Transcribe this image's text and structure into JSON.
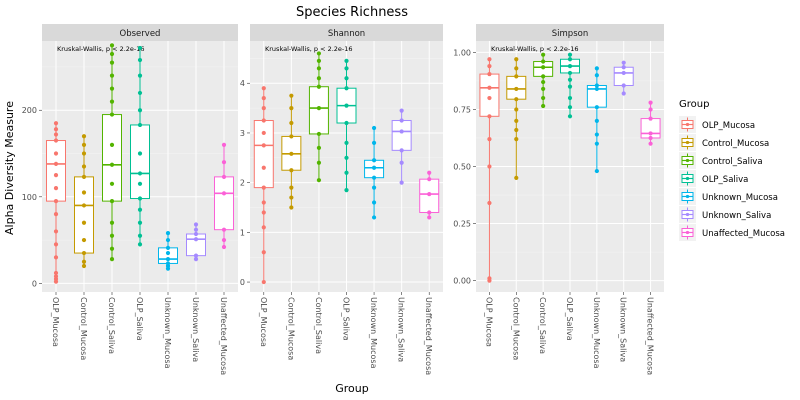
{
  "chart_data": {
    "type": "box",
    "title": "Species Richness",
    "xlabel": "Group",
    "ylabel": "Alpha Diversity Measure",
    "categories": [
      "OLP_Mucosa",
      "Control_Mucosa",
      "Control_Saliva",
      "OLP_Saliva",
      "Unknown_Mucosa",
      "Unknown_Saliva",
      "Unaffected_Mucosa"
    ],
    "colors": [
      "#F8766D",
      "#C49A00",
      "#53B400",
      "#00C094",
      "#00B6EB",
      "#A58AFF",
      "#FB61D7"
    ],
    "legend": {
      "title": "Group",
      "position": "right",
      "entries": [
        "OLP_Mucosa",
        "Control_Mucosa",
        "Control_Saliva",
        "OLP_Saliva",
        "Unknown_Mucosa",
        "Unknown_Saliva",
        "Unaffected_Mucosa"
      ]
    },
    "grid": true,
    "panels": [
      {
        "name": "Observed",
        "annotation": "Kruskal-Wallis, p < 2.2e-16",
        "ylim": [
          -10,
          280
        ],
        "ticks": [
          0,
          100,
          200
        ],
        "tick_labels": [
          "0",
          "100",
          "200"
        ],
        "boxes": [
          {
            "q1": 95,
            "median": 138,
            "q3": 165,
            "whisker_low": 2,
            "whisker_high": 185,
            "points": [
              2,
              5,
              8,
              12,
              30,
              45,
              60,
              80,
              95,
              110,
              125,
              138,
              150,
              165,
              172,
              178,
              185
            ]
          },
          {
            "q1": 35,
            "median": 90,
            "q3": 123,
            "whisker_low": 20,
            "whisker_high": 170,
            "points": [
              20,
              25,
              35,
              50,
              70,
              90,
              105,
              123,
              135,
              150,
              160,
              170
            ]
          },
          {
            "q1": 95,
            "median": 137,
            "q3": 195,
            "whisker_low": 28,
            "whisker_high": 275,
            "points": [
              28,
              40,
              55,
              70,
              95,
              115,
              137,
              160,
              195,
              210,
              225,
              240,
              255,
              265,
              275
            ]
          },
          {
            "q1": 98,
            "median": 127,
            "q3": 183,
            "whisker_low": 45,
            "whisker_high": 272,
            "points": [
              45,
              55,
              70,
              85,
              98,
              115,
              127,
              150,
              183,
              200,
              220,
              240,
              258,
              272
            ]
          },
          {
            "q1": 23,
            "median": 28,
            "q3": 41,
            "whisker_low": 17,
            "whisker_high": 58,
            "points": [
              17,
              20,
              23,
              28,
              35,
              41,
              50,
              58
            ]
          },
          {
            "q1": 32,
            "median": 51,
            "q3": 57,
            "whisker_low": 28,
            "whisker_high": 68,
            "points": [
              28,
              32,
              51,
              57,
              62,
              68
            ]
          },
          {
            "q1": 62,
            "median": 104,
            "q3": 123,
            "whisker_low": 42,
            "whisker_high": 160,
            "points": [
              42,
              50,
              62,
              104,
              123,
              140,
              160
            ]
          }
        ]
      },
      {
        "name": "Shannon",
        "annotation": "Kruskal-Wallis, p < 2.2e-16",
        "ylim": [
          -0.2,
          4.85
        ],
        "ticks": [
          0,
          1,
          2,
          3,
          4
        ],
        "tick_labels": [
          "0",
          "1",
          "2",
          "3",
          "4"
        ],
        "boxes": [
          {
            "q1": 1.9,
            "median": 2.75,
            "q3": 3.25,
            "whisker_low": 0.0,
            "whisker_high": 3.9,
            "points": [
              0.0,
              0.6,
              1.1,
              1.4,
              1.6,
              1.9,
              2.3,
              2.75,
              3.0,
              3.25,
              3.5,
              3.7,
              3.9
            ]
          },
          {
            "q1": 2.25,
            "median": 2.58,
            "q3": 2.93,
            "whisker_low": 1.5,
            "whisker_high": 3.75,
            "points": [
              1.5,
              1.7,
              1.9,
              2.25,
              2.58,
              2.93,
              3.2,
              3.5,
              3.75
            ]
          },
          {
            "q1": 2.98,
            "median": 3.5,
            "q3": 3.93,
            "whisker_low": 2.05,
            "whisker_high": 4.6,
            "points": [
              2.05,
              2.4,
              2.7,
              2.98,
              3.5,
              3.93,
              4.1,
              4.3,
              4.45,
              4.6
            ]
          },
          {
            "q1": 3.2,
            "median": 3.55,
            "q3": 3.9,
            "whisker_low": 1.85,
            "whisker_high": 4.45,
            "points": [
              1.85,
              2.2,
              2.5,
              2.8,
              3.2,
              3.55,
              3.9,
              4.1,
              4.3,
              4.45
            ]
          },
          {
            "q1": 2.1,
            "median": 2.3,
            "q3": 2.45,
            "whisker_low": 1.3,
            "whisker_high": 3.1,
            "points": [
              1.3,
              1.6,
              1.9,
              2.1,
              2.3,
              2.45,
              2.8,
              3.1
            ]
          },
          {
            "q1": 2.65,
            "median": 3.03,
            "q3": 3.25,
            "whisker_low": 2.0,
            "whisker_high": 3.45,
            "points": [
              2.0,
              2.4,
              2.65,
              3.03,
              3.25,
              3.45
            ]
          },
          {
            "q1": 1.4,
            "median": 1.77,
            "q3": 2.07,
            "whisker_low": 1.3,
            "whisker_high": 2.2,
            "points": [
              1.3,
              1.4,
              1.77,
              2.07,
              2.2
            ]
          }
        ]
      },
      {
        "name": "Simpson",
        "annotation": "Kruskal-Wallis, p < 2.2e-16",
        "ylim": [
          -0.05,
          1.05
        ],
        "ticks": [
          0.0,
          0.25,
          0.5,
          0.75,
          1.0
        ],
        "tick_labels": [
          "0.00",
          "0.25",
          "0.50",
          "0.75",
          "1.00"
        ],
        "boxes": [
          {
            "q1": 0.72,
            "median": 0.845,
            "q3": 0.905,
            "whisker_low": 0.0,
            "whisker_high": 0.97,
            "points": [
              0.0,
              0.01,
              0.34,
              0.5,
              0.62,
              0.72,
              0.8,
              0.845,
              0.905,
              0.94,
              0.97
            ]
          },
          {
            "q1": 0.795,
            "median": 0.84,
            "q3": 0.895,
            "whisker_low": 0.45,
            "whisker_high": 0.97,
            "points": [
              0.45,
              0.62,
              0.66,
              0.7,
              0.75,
              0.795,
              0.84,
              0.895,
              0.93,
              0.97
            ]
          },
          {
            "q1": 0.895,
            "median": 0.935,
            "q3": 0.96,
            "whisker_low": 0.765,
            "whisker_high": 0.99,
            "points": [
              0.765,
              0.8,
              0.84,
              0.87,
              0.895,
              0.935,
              0.96,
              0.99
            ]
          },
          {
            "q1": 0.91,
            "median": 0.94,
            "q3": 0.97,
            "whisker_low": 0.72,
            "whisker_high": 0.99,
            "points": [
              0.72,
              0.76,
              0.8,
              0.85,
              0.88,
              0.91,
              0.94,
              0.97,
              0.99
            ]
          },
          {
            "q1": 0.76,
            "median": 0.84,
            "q3": 0.855,
            "whisker_low": 0.48,
            "whisker_high": 0.93,
            "points": [
              0.48,
              0.6,
              0.64,
              0.7,
              0.76,
              0.84,
              0.855,
              0.9,
              0.93
            ]
          },
          {
            "q1": 0.855,
            "median": 0.91,
            "q3": 0.935,
            "whisker_low": 0.82,
            "whisker_high": 0.955,
            "points": [
              0.82,
              0.855,
              0.91,
              0.935,
              0.955
            ]
          },
          {
            "q1": 0.625,
            "median": 0.645,
            "q3": 0.71,
            "whisker_low": 0.6,
            "whisker_high": 0.78,
            "points": [
              0.6,
              0.625,
              0.645,
              0.71,
              0.75,
              0.78
            ]
          }
        ]
      }
    ]
  }
}
